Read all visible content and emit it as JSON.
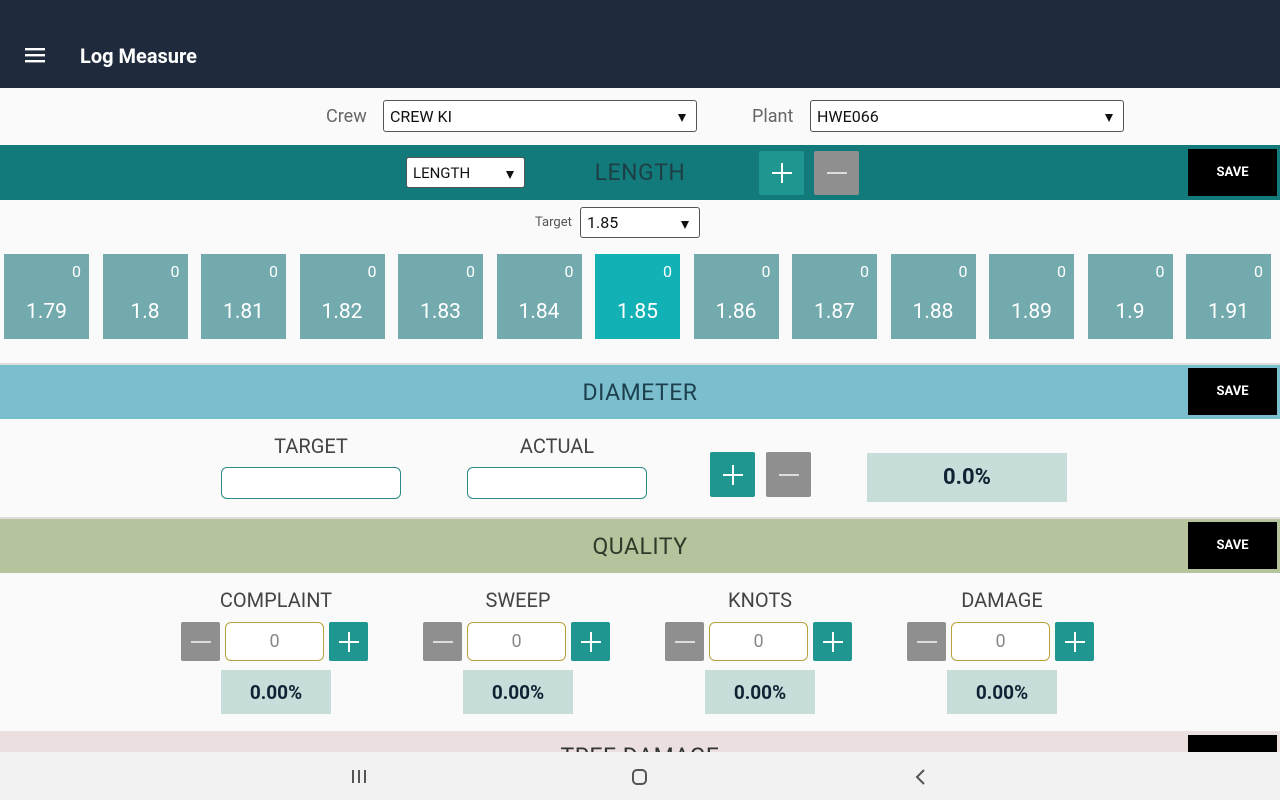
{
  "app_bar": {
    "title": "Log Measure"
  },
  "filters": {
    "crew_label": "Crew",
    "crew": "CREW KI",
    "plant_label": "Plant",
    "plant": "HWE066"
  },
  "length": {
    "selector": "LENGTH",
    "title": "LENGTH",
    "save": "SAVE",
    "target_label": "Target",
    "target": 1.85,
    "tiles": [
      {
        "count": 0,
        "value": 1.79
      },
      {
        "count": 0,
        "value": 1.8
      },
      {
        "count": 0,
        "value": 1.81
      },
      {
        "count": 0,
        "value": 1.82
      },
      {
        "count": 0,
        "value": 1.83
      },
      {
        "count": 0,
        "value": 1.84
      },
      {
        "count": 0,
        "value": 1.85,
        "selected": true
      },
      {
        "count": 0,
        "value": 1.86
      },
      {
        "count": 0,
        "value": 1.87
      },
      {
        "count": 0,
        "value": 1.88
      },
      {
        "count": 0,
        "value": 1.89
      },
      {
        "count": 0,
        "value": 1.9
      },
      {
        "count": 0,
        "value": 1.91
      }
    ]
  },
  "diameter": {
    "title": "DIAMETER",
    "save": "SAVE",
    "target_label": "TARGET",
    "actual_label": "ACTUAL",
    "percent": "0.0%"
  },
  "quality": {
    "title": "QUALITY",
    "save": "SAVE",
    "items": [
      {
        "label": "COMPLAINT",
        "count": 0,
        "percent": "0.00%"
      },
      {
        "label": "SWEEP",
        "count": 0,
        "percent": "0.00%"
      },
      {
        "label": "KNOTS",
        "count": 0,
        "percent": "0.00%"
      },
      {
        "label": "DAMAGE",
        "count": 0,
        "percent": "0.00%"
      }
    ]
  },
  "tree_damage": {
    "title": "TREE DAMAGE"
  }
}
